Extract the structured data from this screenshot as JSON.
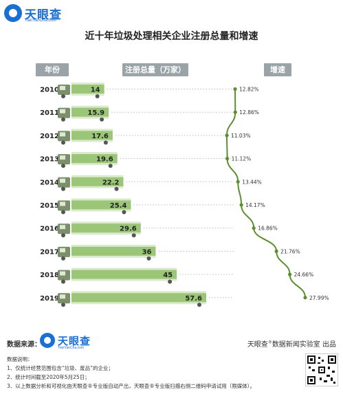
{
  "brand": {
    "name": "天眼查",
    "sub": "TianYanCha.com"
  },
  "title": "近十年垃圾处理相关企业注册总量和增速",
  "headers": {
    "year": "年份",
    "total": "注册总量（万家）",
    "growth": "增速"
  },
  "chart_data": {
    "type": "bar",
    "title": "近十年垃圾处理相关企业注册总量和增速",
    "categories": [
      "2010",
      "2011",
      "2012",
      "2013",
      "2014",
      "2015",
      "2016",
      "2017",
      "2018",
      "2019"
    ],
    "series": [
      {
        "name": "注册总量（万家）",
        "values": [
          14,
          15.9,
          17.6,
          19.6,
          22.2,
          25.4,
          29.6,
          36,
          45,
          57.6
        ]
      },
      {
        "name": "增速",
        "values": [
          12.82,
          12.86,
          11.03,
          11.12,
          13.44,
          14.17,
          16.86,
          21.76,
          24.66,
          27.99
        ],
        "labels": [
          "12.82%",
          "12.86%",
          "11.03%",
          "11.12%",
          "13.44%",
          "14.17%",
          "16.86%",
          "21.76%",
          "24.66%",
          "27.99%"
        ]
      }
    ],
    "value_labels": [
      "14",
      "15.9",
      "17.6",
      "19.6",
      "22.2",
      "25.4",
      "29.6",
      "36",
      "45",
      "57.6"
    ],
    "colors": {
      "bar": "#8fc068",
      "bar_light": "#dbe9cc",
      "line": "#5a8f2e",
      "truck": "#7a8f6a"
    }
  },
  "footer": {
    "source_label": "数据来源：",
    "right_brand": "天眼查",
    "right_reg": "®",
    "right_rest": "数据新闻实验室 出品"
  },
  "notes": {
    "heading": "数据说明：",
    "items": [
      "1、仅统计经营范围包含“垃圾、废品”的企业；",
      "2、统计时间截至2020年5月25日；",
      "3、以上数据分析和可视化由天眼查®专业版自动产出，天眼查®专业版扫描右侧二维码申请试用（限媒体）。"
    ]
  }
}
